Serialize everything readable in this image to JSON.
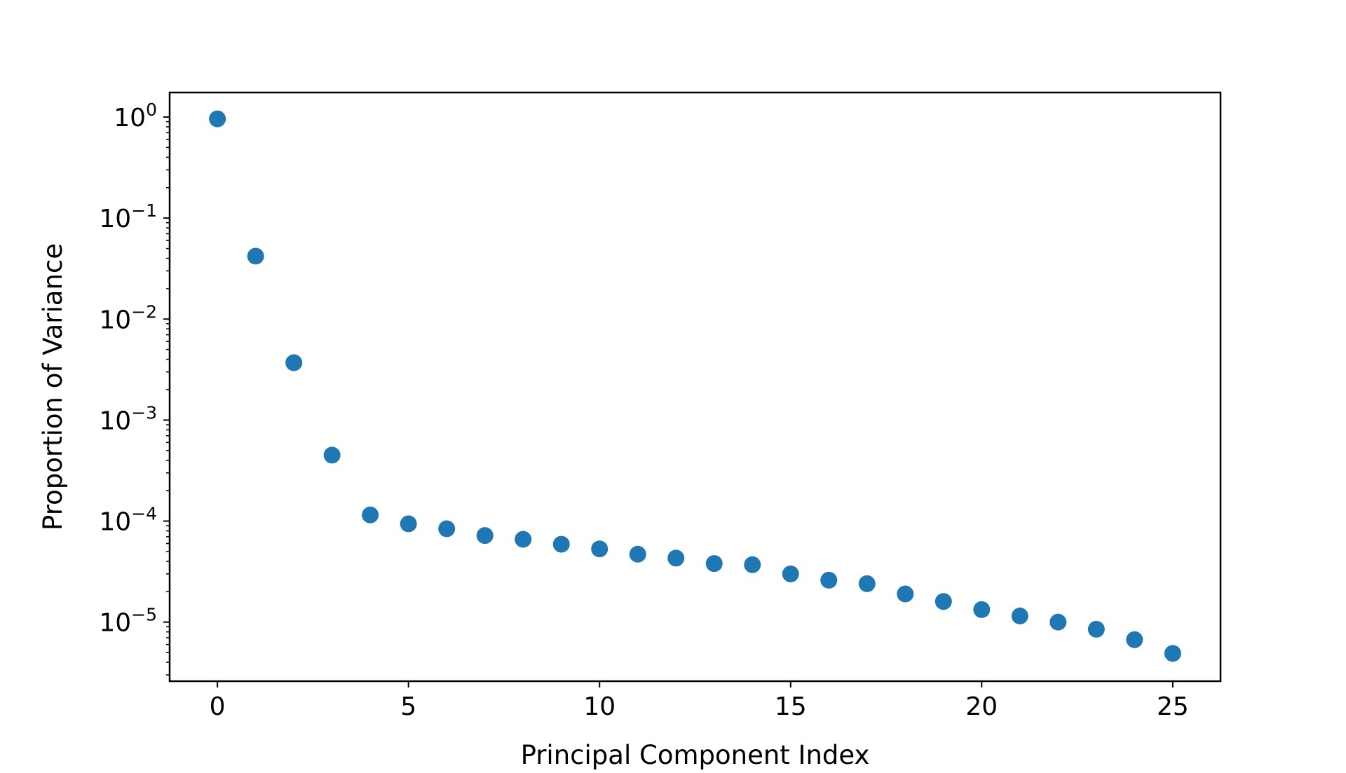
{
  "chart_data": {
    "type": "scatter",
    "xlabel": "Principal Component Index",
    "ylabel": "Proportion of Variance",
    "xscale": "linear",
    "yscale": "log",
    "xlim": [
      -1.25,
      26.25
    ],
    "ylim": [
      2.6e-06,
      1.75
    ],
    "xticks": [
      0,
      5,
      10,
      15,
      20,
      25
    ],
    "xtick_labels": [
      "0",
      "5",
      "10",
      "15",
      "20",
      "25"
    ],
    "yticks": [
      {
        "value": 1,
        "base": "10",
        "exponent": "0"
      },
      {
        "value": 0.1,
        "base": "10",
        "exponent": "−1"
      },
      {
        "value": 0.01,
        "base": "10",
        "exponent": "−2"
      },
      {
        "value": 0.001,
        "base": "10",
        "exponent": "−3"
      },
      {
        "value": 0.0001,
        "base": "10",
        "exponent": "−4"
      },
      {
        "value": 1e-05,
        "base": "10",
        "exponent": "−5"
      }
    ],
    "grid": false,
    "legend": "none",
    "marker_color": "#1f77b4",
    "points": [
      {
        "x": 0,
        "y": 0.96
      },
      {
        "x": 1,
        "y": 0.042
      },
      {
        "x": 2,
        "y": 0.0037
      },
      {
        "x": 3,
        "y": 0.00045
      },
      {
        "x": 4,
        "y": 0.000115
      },
      {
        "x": 5,
        "y": 9.4e-05
      },
      {
        "x": 6,
        "y": 8.4e-05
      },
      {
        "x": 7,
        "y": 7.2e-05
      },
      {
        "x": 8,
        "y": 6.6e-05
      },
      {
        "x": 9,
        "y": 5.9e-05
      },
      {
        "x": 10,
        "y": 5.3e-05
      },
      {
        "x": 11,
        "y": 4.7e-05
      },
      {
        "x": 12,
        "y": 4.3e-05
      },
      {
        "x": 13,
        "y": 3.8e-05
      },
      {
        "x": 14,
        "y": 3.7e-05
      },
      {
        "x": 15,
        "y": 3e-05
      },
      {
        "x": 16,
        "y": 2.6e-05
      },
      {
        "x": 17,
        "y": 2.4e-05
      },
      {
        "x": 18,
        "y": 1.9e-05
      },
      {
        "x": 19,
        "y": 1.6e-05
      },
      {
        "x": 20,
        "y": 1.33e-05
      },
      {
        "x": 21,
        "y": 1.15e-05
      },
      {
        "x": 22,
        "y": 1e-05
      },
      {
        "x": 23,
        "y": 8.5e-06
      },
      {
        "x": 24,
        "y": 6.7e-06
      },
      {
        "x": 25,
        "y": 4.9e-06
      }
    ]
  }
}
